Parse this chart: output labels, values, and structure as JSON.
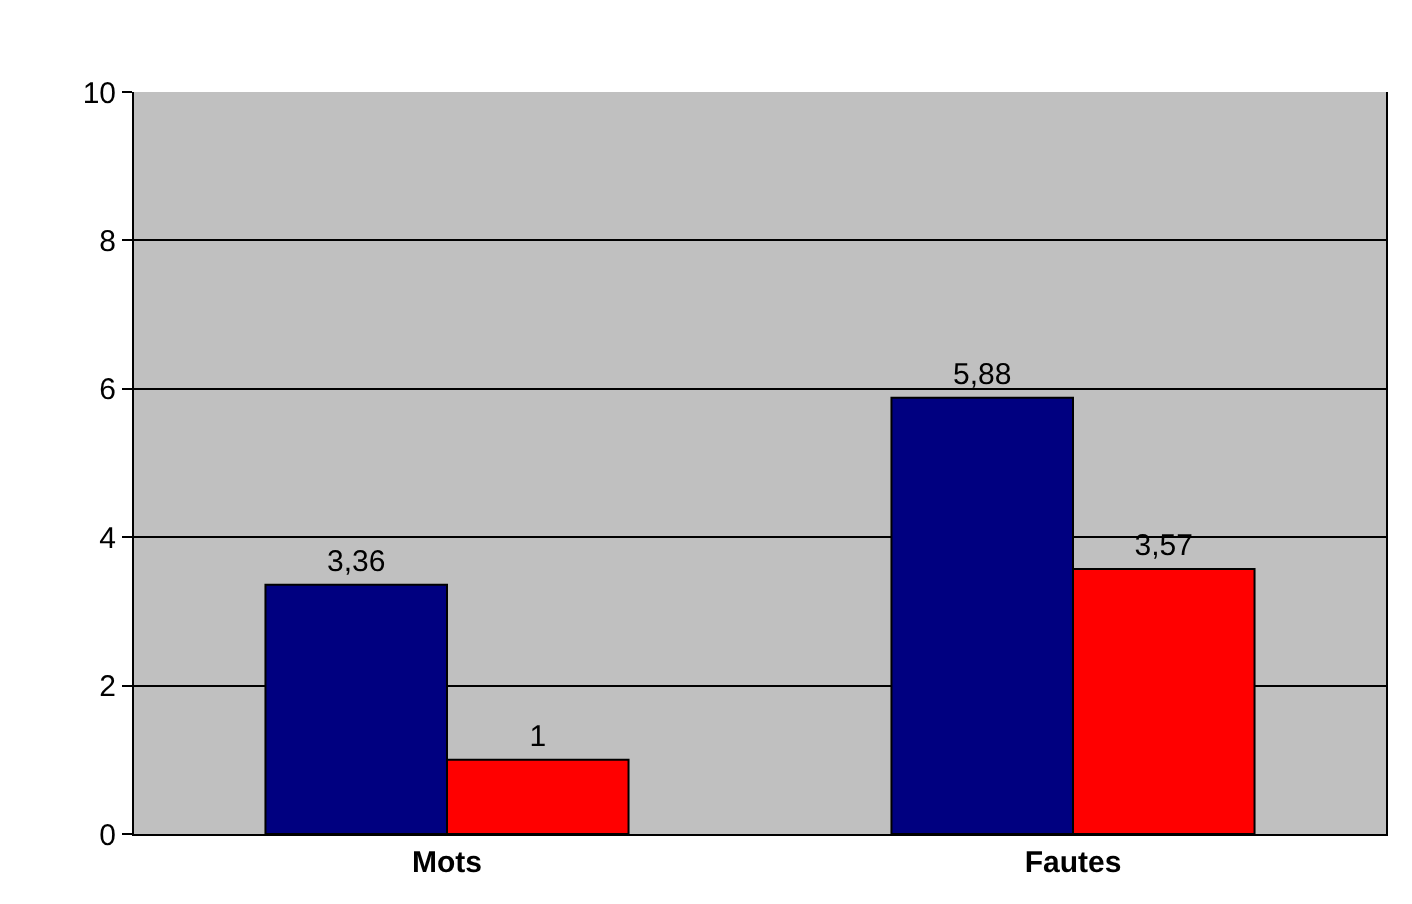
{
  "chart_data": {
    "type": "bar",
    "categories": [
      "Mots",
      "Fautes"
    ],
    "series": [
      {
        "color": "#000080",
        "values": [
          3.36,
          5.88
        ],
        "value_labels": [
          "3,36",
          "5,88"
        ]
      },
      {
        "color": "#ff0000",
        "values": [
          1,
          3.57
        ],
        "value_labels": [
          "1",
          "3,57"
        ]
      }
    ],
    "ylim": [
      0,
      10
    ],
    "yticks": [
      0,
      2,
      4,
      6,
      8,
      10
    ],
    "grid": "y"
  }
}
